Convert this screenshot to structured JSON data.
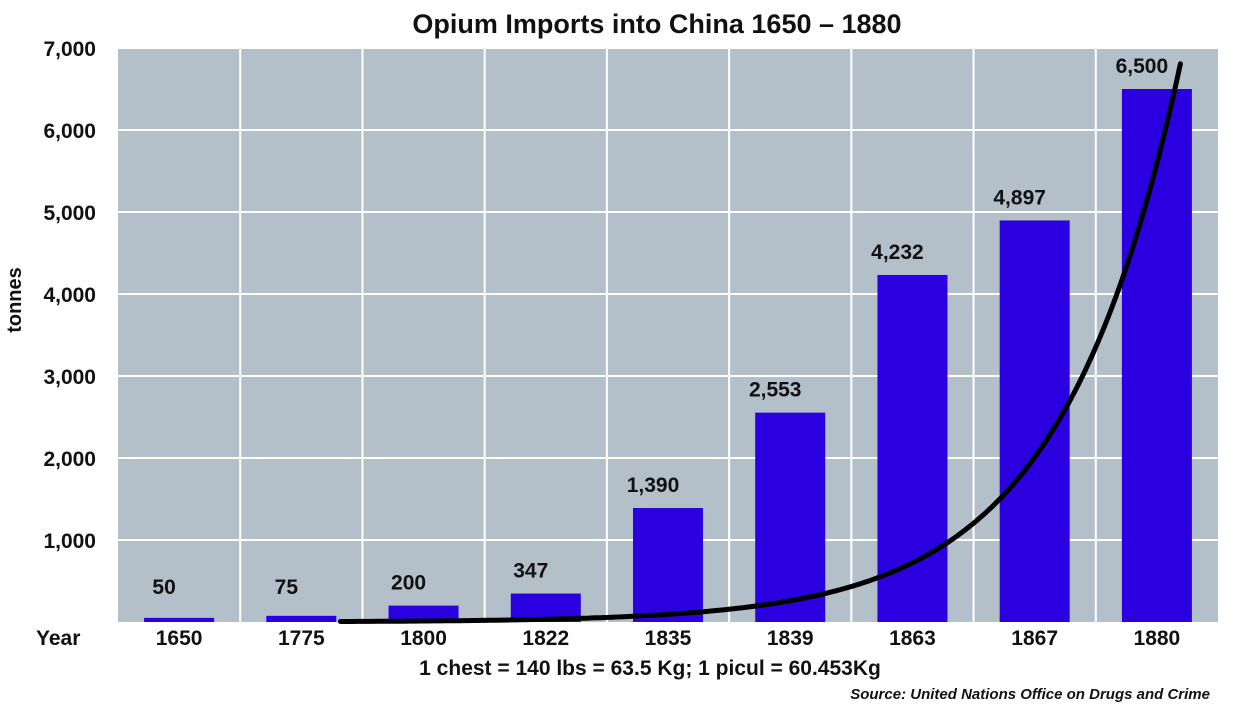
{
  "chart_data": {
    "type": "bar",
    "title": "Opium Imports into China 1650 – 1880",
    "ylabel": "tonnes",
    "xlabel": "Year",
    "categories": [
      "1650",
      "1775",
      "1800",
      "1822",
      "1835",
      "1839",
      "1863",
      "1867",
      "1880"
    ],
    "values": [
      50,
      75,
      200,
      347,
      1390,
      2553,
      4232,
      4897,
      6500
    ],
    "data_labels": [
      "50",
      "75",
      "200",
      "347",
      "1,390",
      "2,553",
      "4,232",
      "4,897",
      "6,500"
    ],
    "y_ticks": [
      1000,
      2000,
      3000,
      4000,
      5000,
      6000,
      7000
    ],
    "y_tick_labels": [
      "1,000",
      "2,000",
      "3,000",
      "4,000",
      "5,000",
      "6,000",
      "7,000"
    ],
    "ylim": [
      0,
      7000
    ],
    "grid": true,
    "trend_curve": "exponential",
    "colors": {
      "bar": "#2a00e0",
      "plot_bg": "#b4c0c9",
      "grid": "#ffffff",
      "curve": "#000000"
    },
    "footnote": "1 chest = 140 lbs = 63.5 Kg; 1 picul = 60.453Kg",
    "source": "Source: United Nations Office on Drugs and Crime"
  }
}
